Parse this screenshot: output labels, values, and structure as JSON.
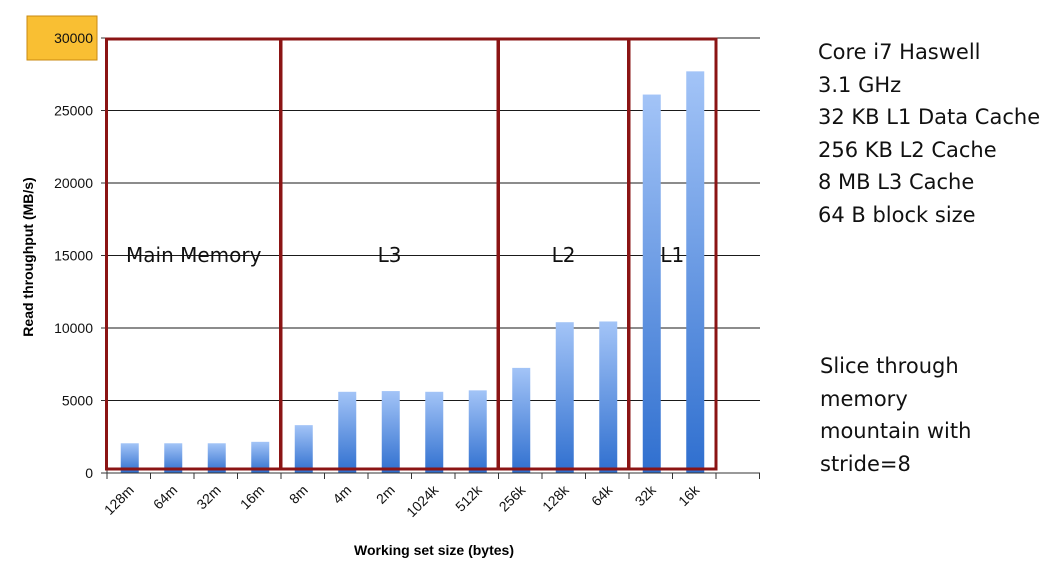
{
  "chart_data": {
    "type": "bar",
    "title": "",
    "xlabel": "Working set size (bytes)",
    "ylabel": "Read throughput (MB/s)",
    "ylim": [
      0,
      30000
    ],
    "yticks": [
      0,
      5000,
      10000,
      15000,
      20000,
      25000,
      30000
    ],
    "highlighted_ytick": 30000,
    "grid": true,
    "categories": [
      "128m",
      "64m",
      "32m",
      "16m",
      "8m",
      "4m",
      "2m",
      "1024k",
      "512k",
      "256k",
      "128k",
      "64k",
      "32k",
      "16k"
    ],
    "values": [
      2050,
      2050,
      2050,
      2150,
      3300,
      5600,
      5650,
      5600,
      5700,
      7250,
      10400,
      10450,
      26100,
      27700
    ],
    "regions": [
      {
        "label": "Main Memory",
        "from_index": 0,
        "to_index": 3
      },
      {
        "label": "L3",
        "from_index": 4,
        "to_index": 8
      },
      {
        "label": "L2",
        "from_index": 9,
        "to_index": 11
      },
      {
        "label": "L1",
        "from_index": 12,
        "to_index": 13
      }
    ],
    "colors": {
      "bar_top": "#a3c4f7",
      "bar_bottom": "#2f6fcf",
      "region_border": "#8b1414",
      "highlight_fill": "#f9bf33",
      "grid": "#1a1a1a"
    }
  },
  "specs": [
    "Core i7 Haswell",
    "3.1 GHz",
    "32 KB L1 Data Cache",
    "256 KB L2 Cache",
    "8 MB L3 Cache",
    "64 B block size"
  ],
  "note": [
    "Slice through",
    "memory",
    "mountain with",
    "stride=8"
  ]
}
